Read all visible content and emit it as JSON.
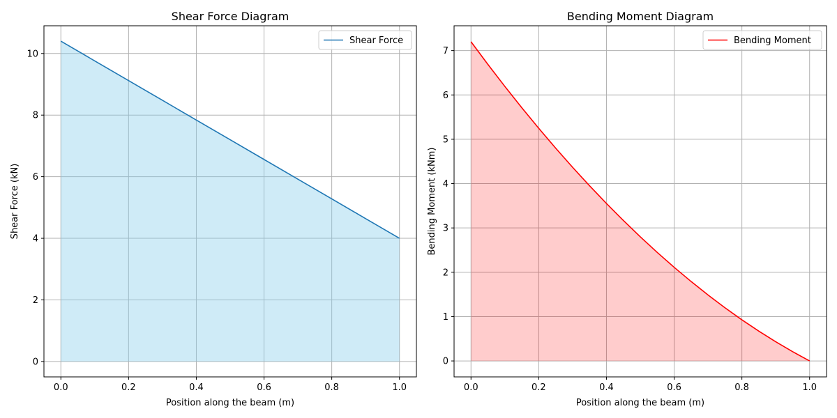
{
  "chart_data": [
    {
      "type": "area",
      "title": "Shear Force Diagram",
      "xlabel": "Position along the beam (m)",
      "ylabel": "Shear Force (kN)",
      "xlim": [
        -0.05,
        1.05
      ],
      "ylim": [
        -0.5,
        10.9
      ],
      "xticks": [
        0.0,
        0.2,
        0.4,
        0.6,
        0.8,
        1.0
      ],
      "xtick_labels": [
        "0.0",
        "0.2",
        "0.4",
        "0.6",
        "0.8",
        "1.0"
      ],
      "yticks": [
        0,
        2,
        4,
        6,
        8,
        10
      ],
      "ytick_labels": [
        "0",
        "2",
        "4",
        "6",
        "8",
        "10"
      ],
      "grid": true,
      "legend_position": "upper right",
      "series": [
        {
          "name": "Shear Force",
          "color": "#1f77b4",
          "fill_color": "#87ceeb",
          "fill_opacity": 0.4,
          "x": [
            0.0,
            0.1,
            0.2,
            0.3,
            0.4,
            0.5,
            0.6,
            0.7,
            0.8,
            0.9,
            1.0
          ],
          "y": [
            10.4,
            9.76,
            9.12,
            8.48,
            7.84,
            7.2,
            6.56,
            5.92,
            5.28,
            4.64,
            4.0
          ]
        }
      ]
    },
    {
      "type": "area",
      "title": "Bending Moment Diagram",
      "xlabel": "Position along the beam (m)",
      "ylabel": "Bending Moment (kNm)",
      "xlim": [
        -0.05,
        1.05
      ],
      "ylim": [
        -0.36,
        7.56
      ],
      "xticks": [
        0.0,
        0.2,
        0.4,
        0.6,
        0.8,
        1.0
      ],
      "xtick_labels": [
        "0.0",
        "0.2",
        "0.4",
        "0.6",
        "0.8",
        "1.0"
      ],
      "yticks": [
        0,
        1,
        2,
        3,
        4,
        5,
        6,
        7
      ],
      "ytick_labels": [
        "0",
        "1",
        "2",
        "3",
        "4",
        "5",
        "6",
        "7"
      ],
      "grid": true,
      "legend_position": "upper right",
      "series": [
        {
          "name": "Bending Moment",
          "color": "#ff0000",
          "fill_color": "#ff0000",
          "fill_opacity": 0.2,
          "x": [
            0.0,
            0.05,
            0.1,
            0.15,
            0.2,
            0.25,
            0.3,
            0.35,
            0.4,
            0.45,
            0.5,
            0.55,
            0.6,
            0.65,
            0.7,
            0.75,
            0.8,
            0.85,
            0.9,
            0.95,
            1.0
          ],
          "y": [
            7.2,
            6.688,
            6.192,
            5.712,
            5.248,
            4.8,
            4.368,
            3.952,
            3.552,
            3.168,
            2.8,
            2.448,
            2.112,
            1.792,
            1.488,
            1.2,
            0.928,
            0.672,
            0.432,
            0.208,
            0.0
          ]
        }
      ]
    }
  ]
}
